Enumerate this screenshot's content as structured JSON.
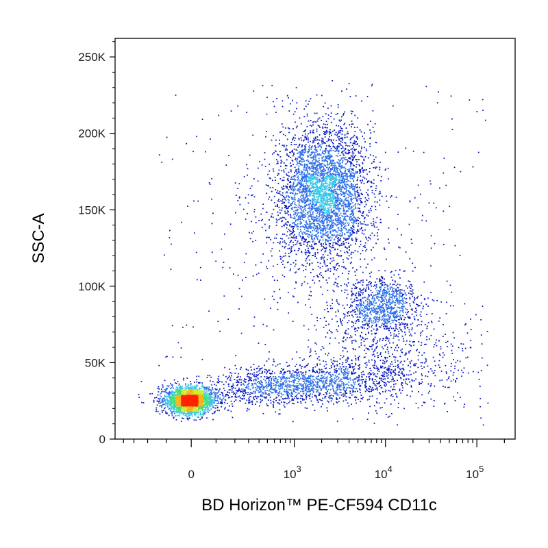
{
  "chart_data": {
    "type": "scatter",
    "title": "",
    "xlabel": "BD Horizon™ PE-CF594  CD11c",
    "ylabel": "SSC-A",
    "x_scale": "biexponential",
    "x_ticks": [
      {
        "value": 0,
        "base": "0",
        "exp": ""
      },
      {
        "value": 1000,
        "base": "10",
        "exp": "3"
      },
      {
        "value": 10000,
        "base": "10",
        "exp": "4"
      },
      {
        "value": 100000,
        "base": "10",
        "exp": "5"
      }
    ],
    "y_ticks": [
      {
        "value": 0,
        "label": "0"
      },
      {
        "value": 50000,
        "label": "50K"
      },
      {
        "value": 100000,
        "label": "100K"
      },
      {
        "value": 150000,
        "label": "150K"
      },
      {
        "value": 200000,
        "label": "200K"
      },
      {
        "value": 250000,
        "label": "250K"
      }
    ],
    "xlim": [
      -500,
      262144
    ],
    "ylim": [
      0,
      262144
    ],
    "grid": false,
    "legend": "none",
    "color_scale": [
      "#0a1bbd",
      "#2d6fe8",
      "#39c7e6",
      "#43e07a",
      "#c8ef2a",
      "#f6b51b",
      "#ff2200"
    ],
    "populations": [
      {
        "name": "",
        "center_x": 30,
        "center_y": 25000,
        "relative_events": 0.32
      },
      {
        "name": "",
        "center_x": 2500,
        "center_y": 162000,
        "relative_events": 0.36
      },
      {
        "name": "",
        "center_x": 9000,
        "center_y": 87000,
        "relative_events": 0.12
      },
      {
        "name": "",
        "center_x": 2000,
        "center_y": 33000,
        "relative_events": 0.2
      }
    ]
  }
}
